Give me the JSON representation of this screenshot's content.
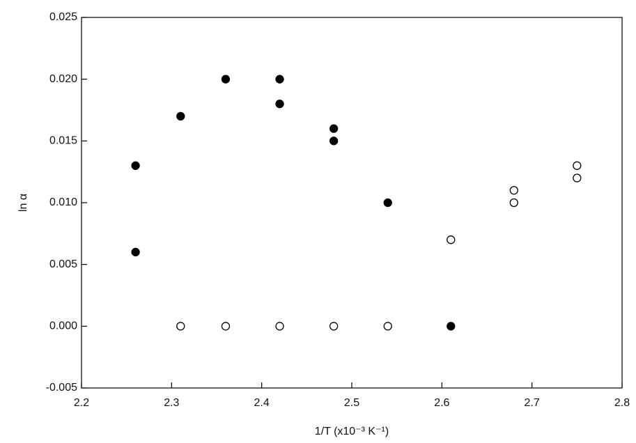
{
  "chart_data": {
    "type": "scatter",
    "x_label": "1/T (x10⁻³ K⁻¹)",
    "y_label": "ln α",
    "xlim": [
      2.2,
      2.8
    ],
    "xticks": [
      2.2,
      2.3,
      2.4,
      2.5,
      2.6,
      2.7,
      2.8
    ],
    "ylim": [
      -0.005,
      0.025
    ],
    "yticks": [
      -0.005,
      {
        "value": 0,
        "label": "0.000"
      },
      0.005,
      {
        "value": 0.01,
        "label": "0.010"
      },
      0.015,
      {
        "value": 0.02,
        "label": "0.020"
      },
      0.025
    ],
    "series": [
      {
        "color": "#000000",
        "filled": true,
        "x": [
          2.26,
          2.26,
          2.31,
          2.36,
          2.42,
          2.42,
          2.48,
          2.48,
          2.54,
          2.61
        ],
        "values": [
          0.013,
          0.006,
          0.017,
          0.02,
          0.02,
          0.018,
          0.016,
          0.015,
          0.01,
          0
        ]
      },
      {
        "color": "#000000",
        "filled": false,
        "x": [
          2.31,
          2.36,
          2.42,
          2.48,
          2.54,
          2.61,
          2.68,
          2.68,
          2.75,
          2.75
        ],
        "values": [
          0,
          0,
          0,
          0,
          0,
          0.007,
          0.011,
          0.01,
          0.013,
          0.012
        ]
      }
    ]
  }
}
